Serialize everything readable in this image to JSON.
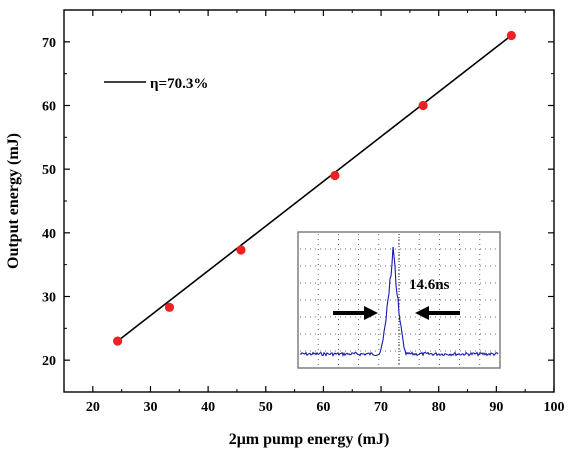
{
  "chart_data": {
    "type": "scatter",
    "xlabel": "2μm pump energy (mJ)",
    "ylabel": "Output energy (mJ)",
    "xlim": [
      15,
      100
    ],
    "ylim": [
      15,
      75
    ],
    "x_ticks": [
      20,
      30,
      40,
      50,
      60,
      70,
      80,
      90,
      100
    ],
    "y_ticks": [
      20,
      30,
      40,
      50,
      60,
      70
    ],
    "grid": false,
    "legend_position": "top-left",
    "series": [
      {
        "type": "scatter",
        "color": "#ee2222",
        "x": [
          24.3,
          33.3,
          45.7,
          62.0,
          77.3,
          92.6
        ],
        "y": [
          23.0,
          28.3,
          37.3,
          49.0,
          60.0,
          71.0
        ]
      },
      {
        "type": "line",
        "name": "η=70.3%",
        "color": "#000000",
        "x": [
          24.3,
          92.6
        ],
        "y": [
          23.0,
          71.0
        ]
      }
    ],
    "inset": {
      "label": "14.6ns",
      "trace_color": "#1a1aaa"
    }
  }
}
